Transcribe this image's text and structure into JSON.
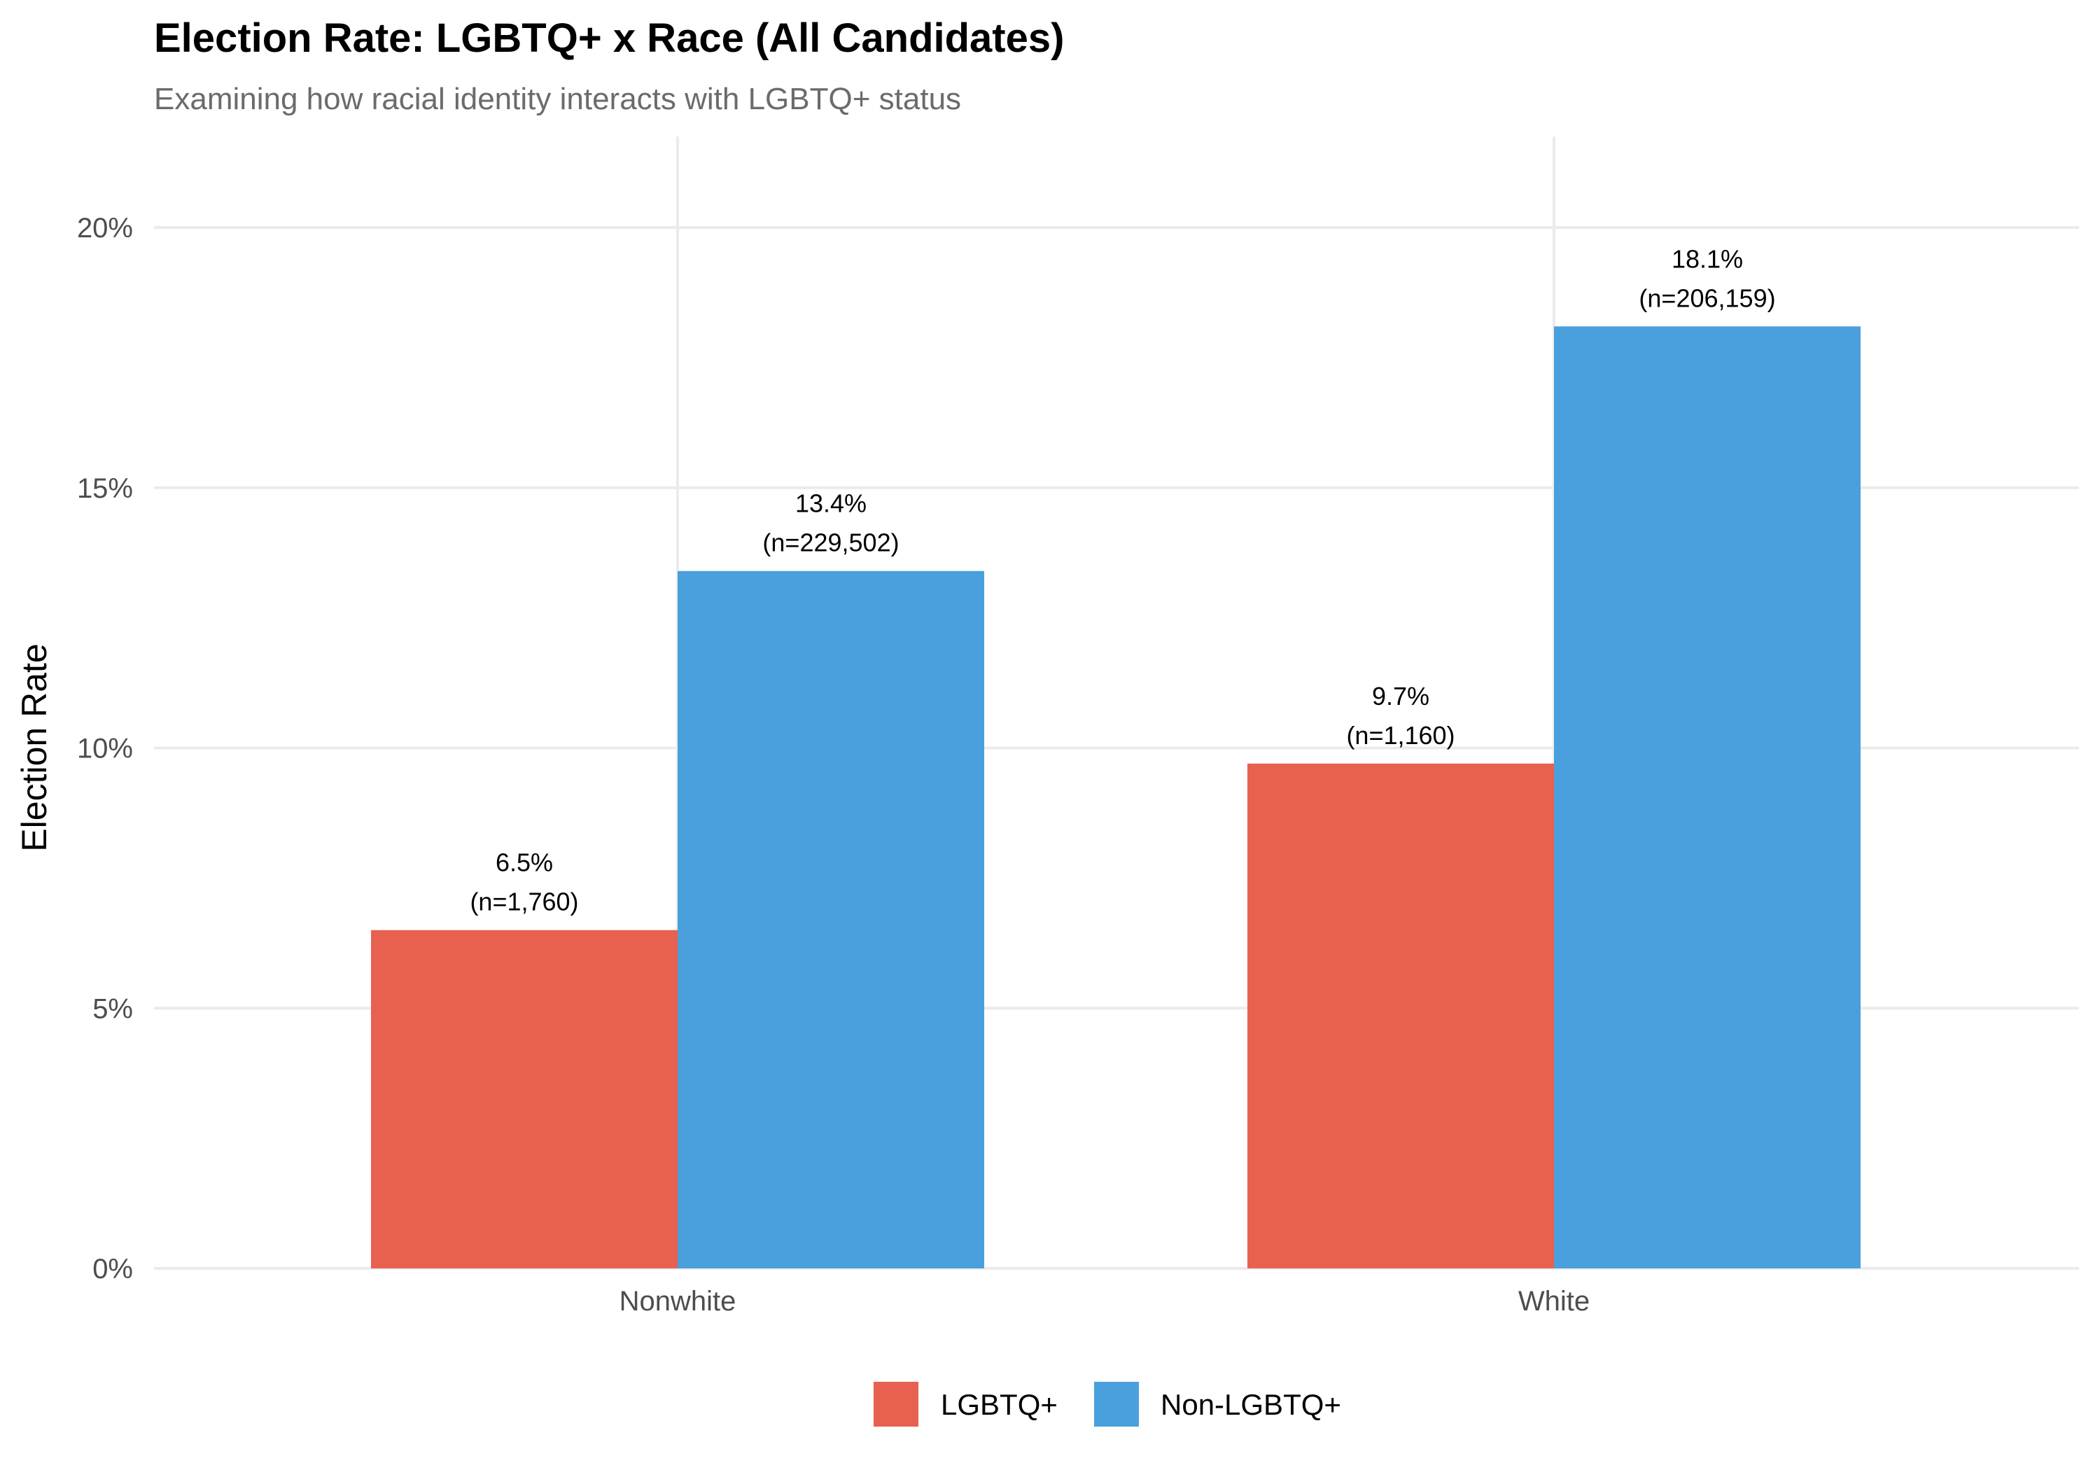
{
  "chart_data": {
    "type": "bar",
    "title": "Election Rate: LGBTQ+ x Race (All Candidates)",
    "subtitle": "Examining how racial identity interacts with LGBTQ+ status",
    "xlabel": "",
    "ylabel": "Election Rate",
    "categories": [
      "Nonwhite",
      "White"
    ],
    "series": [
      {
        "name": "LGBTQ+",
        "color": "#e8604f",
        "values": [
          6.5,
          9.7
        ],
        "labels": [
          "6.5%",
          "9.7%"
        ],
        "n_labels": [
          "(n=1,760)",
          "(n=1,160)"
        ]
      },
      {
        "name": "Non-LGBTQ+",
        "color": "#4aa0dd",
        "values": [
          13.4,
          18.1
        ],
        "labels": [
          "13.4%",
          "18.1%"
        ],
        "n_labels": [
          "(n=229,502)",
          "(n=206,159)"
        ]
      }
    ],
    "ylim": [
      0,
      21.7
    ],
    "yticks": [
      0,
      5,
      10,
      15,
      20
    ],
    "ytick_labels": [
      "0%",
      "5%",
      "10%",
      "15%",
      "20%"
    ],
    "grid": true,
    "legend_position": "bottom"
  }
}
